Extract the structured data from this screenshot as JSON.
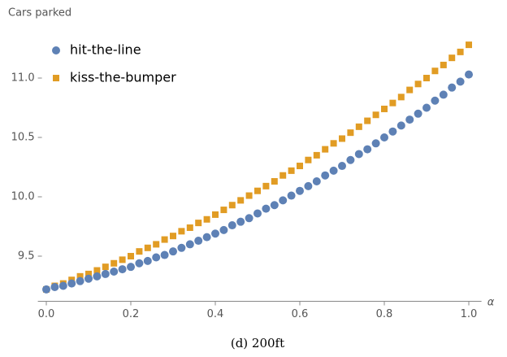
{
  "chart_data": {
    "type": "scatter",
    "y_label": "Cars parked",
    "x_label": "α",
    "caption": "(d) 200ft",
    "x": [
      0,
      0.02,
      0.04,
      0.06,
      0.08,
      0.1,
      0.12,
      0.14,
      0.16,
      0.18,
      0.2,
      0.22,
      0.24,
      0.26,
      0.28,
      0.3,
      0.32,
      0.34,
      0.36,
      0.38,
      0.4,
      0.42,
      0.44,
      0.46,
      0.48,
      0.5,
      0.52,
      0.54,
      0.56,
      0.58,
      0.6,
      0.62,
      0.64,
      0.66,
      0.68,
      0.7,
      0.72,
      0.74,
      0.76,
      0.78,
      0.8,
      0.82,
      0.84,
      0.86,
      0.88,
      0.9,
      0.92,
      0.94,
      0.96,
      0.98,
      1
    ],
    "series": [
      {
        "name": "hit-the-line",
        "color": "#5e81b5",
        "marker": "circle",
        "values": [
          9.22,
          9.24,
          9.25,
          9.27,
          9.29,
          9.31,
          9.33,
          9.35,
          9.37,
          9.39,
          9.41,
          9.44,
          9.46,
          9.49,
          9.51,
          9.54,
          9.57,
          9.6,
          9.63,
          9.66,
          9.69,
          9.72,
          9.76,
          9.79,
          9.82,
          9.86,
          9.9,
          9.93,
          9.97,
          10.01,
          10.05,
          10.09,
          10.13,
          10.18,
          10.22,
          10.26,
          10.31,
          10.36,
          10.4,
          10.45,
          10.5,
          10.55,
          10.6,
          10.65,
          10.7,
          10.75,
          10.81,
          10.86,
          10.92,
          10.97,
          11.03
        ]
      },
      {
        "name": "kiss-the-bumper",
        "color": "#e19c24",
        "marker": "square",
        "values": [
          9.22,
          9.25,
          9.27,
          9.3,
          9.33,
          9.35,
          9.38,
          9.41,
          9.44,
          9.47,
          9.5,
          9.54,
          9.57,
          9.6,
          9.64,
          9.67,
          9.71,
          9.74,
          9.78,
          9.81,
          9.85,
          9.89,
          9.93,
          9.97,
          10.01,
          10.05,
          10.09,
          10.13,
          10.18,
          10.22,
          10.26,
          10.31,
          10.35,
          10.4,
          10.45,
          10.49,
          10.54,
          10.59,
          10.64,
          10.69,
          10.74,
          10.79,
          10.84,
          10.9,
          10.95,
          11.0,
          11.06,
          11.11,
          11.17,
          11.22,
          11.28
        ]
      }
    ],
    "xlim": [
      -0.02,
      1.03
    ],
    "ylim": [
      9.12,
      11.38
    ],
    "xticks": [
      {
        "value": 0,
        "label": "0.0"
      },
      0.2,
      0.4,
      0.6,
      0.8,
      {
        "value": 1,
        "label": "1.0"
      }
    ],
    "yticks": [
      9.5,
      {
        "value": 10,
        "label": "10.0"
      },
      10.5,
      {
        "value": 11,
        "label": "11.0"
      }
    ],
    "legend": "upper left"
  }
}
